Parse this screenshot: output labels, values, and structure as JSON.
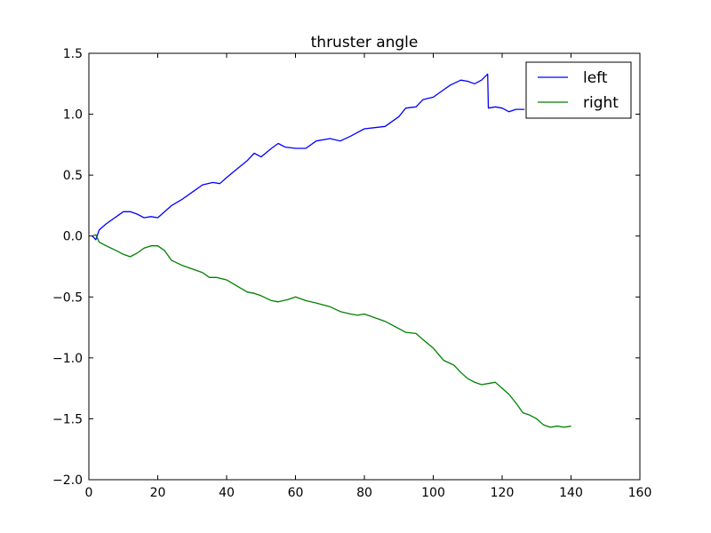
{
  "chart_data": {
    "type": "line",
    "title": "thruster angle",
    "xlabel": "",
    "ylabel": "",
    "xlim": [
      0,
      160
    ],
    "ylim": [
      -2.0,
      1.5
    ],
    "xticks": [
      0,
      20,
      40,
      60,
      80,
      100,
      120,
      140,
      160
    ],
    "xtick_labels": [
      "0",
      "20",
      "40",
      "60",
      "80",
      "100",
      "120",
      "140",
      "160"
    ],
    "yticks": [
      -2.0,
      -1.5,
      -1.0,
      -0.5,
      0.0,
      0.5,
      1.0,
      1.5
    ],
    "ytick_labels": [
      "−2.0",
      "−1.5",
      "−1.0",
      "−0.5",
      "0.0",
      "0.5",
      "1.0",
      "1.5"
    ],
    "grid": false,
    "legend_position": "top-right",
    "series": [
      {
        "name": "left",
        "color": "#0000ff",
        "x": [
          1,
          2,
          3,
          5,
          8,
          10,
          12,
          14,
          16,
          18,
          20,
          22,
          24,
          27,
          30,
          33,
          36,
          38,
          40,
          43,
          46,
          48,
          50,
          53,
          55,
          57,
          60,
          63,
          66,
          70,
          73,
          76,
          78,
          80,
          83,
          86,
          88,
          90,
          92,
          95,
          97,
          100,
          103,
          105,
          108,
          110,
          112,
          114,
          115.8,
          116,
          118,
          120,
          122,
          124,
          126.5
        ],
        "values": [
          0.0,
          -0.03,
          0.05,
          0.1,
          0.16,
          0.2,
          0.2,
          0.18,
          0.15,
          0.16,
          0.15,
          0.2,
          0.25,
          0.3,
          0.36,
          0.42,
          0.44,
          0.43,
          0.48,
          0.55,
          0.62,
          0.68,
          0.65,
          0.72,
          0.76,
          0.73,
          0.72,
          0.72,
          0.78,
          0.8,
          0.78,
          0.82,
          0.85,
          0.88,
          0.89,
          0.9,
          0.94,
          0.98,
          1.05,
          1.06,
          1.12,
          1.14,
          1.2,
          1.24,
          1.28,
          1.27,
          1.25,
          1.28,
          1.33,
          1.05,
          1.06,
          1.05,
          1.02,
          1.04,
          1.04
        ]
      },
      {
        "name": "right",
        "color": "#008000",
        "x": [
          1,
          2,
          3,
          5,
          8,
          10,
          12,
          14,
          16,
          18,
          20,
          22,
          24,
          27,
          30,
          33,
          35,
          37,
          40,
          43,
          46,
          48,
          50,
          53,
          55,
          58,
          60,
          63,
          66,
          70,
          73,
          76,
          78,
          80,
          83,
          86,
          88,
          90,
          92,
          95,
          97,
          100,
          103,
          106,
          108,
          110,
          112,
          114,
          116,
          118,
          120,
          122,
          124,
          126,
          128,
          130,
          132,
          134,
          136,
          138,
          140
        ],
        "values": [
          0.0,
          0.01,
          -0.05,
          -0.08,
          -0.12,
          -0.15,
          -0.17,
          -0.14,
          -0.1,
          -0.08,
          -0.08,
          -0.12,
          -0.2,
          -0.24,
          -0.27,
          -0.3,
          -0.34,
          -0.34,
          -0.36,
          -0.41,
          -0.46,
          -0.47,
          -0.49,
          -0.53,
          -0.54,
          -0.52,
          -0.5,
          -0.53,
          -0.55,
          -0.58,
          -0.62,
          -0.64,
          -0.65,
          -0.64,
          -0.67,
          -0.7,
          -0.73,
          -0.76,
          -0.79,
          -0.8,
          -0.85,
          -0.92,
          -1.02,
          -1.06,
          -1.12,
          -1.17,
          -1.2,
          -1.22,
          -1.21,
          -1.2,
          -1.25,
          -1.3,
          -1.37,
          -1.45,
          -1.47,
          -1.5,
          -1.55,
          -1.57,
          -1.56,
          -1.57,
          -1.56
        ]
      }
    ]
  }
}
